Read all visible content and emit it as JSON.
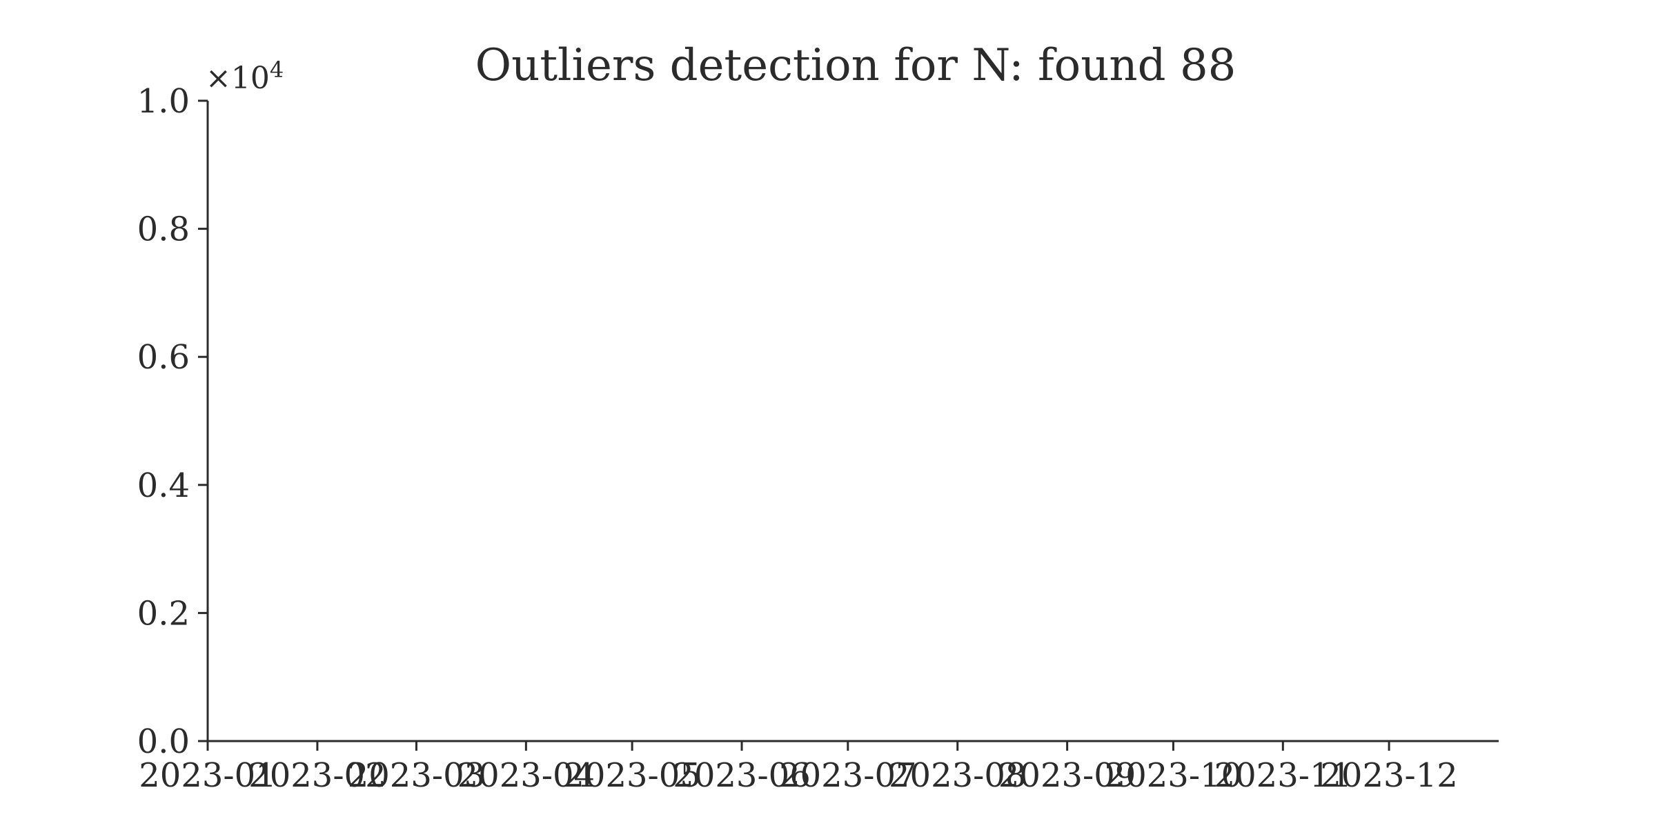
{
  "chart_data": {
    "type": "scatter",
    "title": "Outliers detection for N: found 88",
    "xlabel": "",
    "ylabel": "",
    "x_tick_labels": [
      "2023-01",
      "2023-02",
      "2023-03",
      "2023-04",
      "2023-05",
      "2023-06",
      "2023-07",
      "2023-08",
      "2023-09",
      "2023-10",
      "2023-11",
      "2023-12"
    ],
    "x_tick_dates": [
      "2023-01-01",
      "2023-02-01",
      "2023-03-01",
      "2023-04-01",
      "2023-05-01",
      "2023-06-01",
      "2023-07-01",
      "2023-08-01",
      "2023-09-01",
      "2023-10-01",
      "2023-11-01",
      "2023-12-01"
    ],
    "xlim": [
      "2023-01-01",
      "2024-01-01"
    ],
    "y_tick_labels": [
      "0.0",
      "0.2",
      "0.4",
      "0.6",
      "0.8",
      "1.0"
    ],
    "y_tick_values": [
      0,
      2000,
      4000,
      6000,
      8000,
      10000
    ],
    "y_multiplier_base": "×10",
    "y_multiplier_exp": "4",
    "ylim": [
      0,
      10000
    ],
    "grid": false,
    "series": []
  }
}
